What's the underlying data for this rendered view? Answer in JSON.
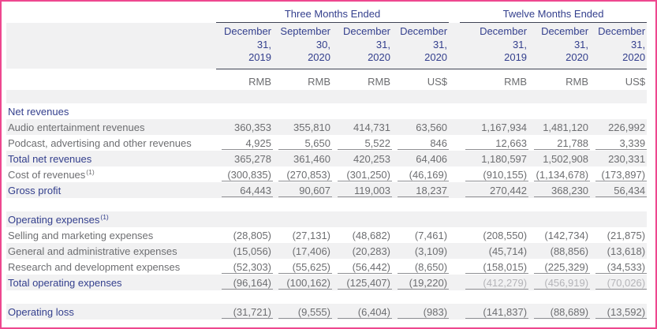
{
  "theme": {
    "frame_border": "#ee478f",
    "navy_text": "#333f8d",
    "gray_text": "#6d6e71",
    "row_shade_bg": "#f1f1f2",
    "value_rule": "#8f9094",
    "header_rule": "#3f4354",
    "faded_text": "#b4b4b8"
  },
  "header": {
    "groups": [
      {
        "label": "Three Months Ended"
      },
      {
        "label": "Twelve Months Ended"
      }
    ],
    "columns": [
      {
        "date": "December\n31,\n2019",
        "currency": "RMB"
      },
      {
        "date": "September\n30,\n2020",
        "currency": "RMB"
      },
      {
        "date": "December\n31,\n2020",
        "currency": "RMB"
      },
      {
        "date": "December\n31,\n2020",
        "currency": "US$"
      },
      {
        "date": "December\n31,\n2019",
        "currency": "RMB"
      },
      {
        "date": "December\n31,\n2020",
        "currency": "RMB"
      },
      {
        "date": "December\n31,\n2020",
        "currency": "US$"
      }
    ]
  },
  "rows": [
    {
      "type": "blank",
      "shade": true
    },
    {
      "type": "section",
      "label": "Net revenues",
      "shade": false
    },
    {
      "type": "item",
      "label": "Audio entertainment revenues",
      "shade": true,
      "values": [
        "360,353",
        "355,810",
        "414,731",
        "63,560",
        "1,167,934",
        "1,481,120",
        "226,992"
      ]
    },
    {
      "type": "item",
      "label": "Podcast, advertising and other revenues",
      "shade": false,
      "underline": true,
      "values": [
        "4,925",
        "5,650",
        "5,522",
        "846",
        "12,663",
        "21,788",
        "3,339"
      ]
    },
    {
      "type": "total",
      "label": "Total net revenues",
      "shade": true,
      "values": [
        "365,278",
        "361,460",
        "420,253",
        "64,406",
        "1,180,597",
        "1,502,908",
        "230,331"
      ]
    },
    {
      "type": "item",
      "label": "Cost of revenues",
      "sup": "(1)",
      "shade": false,
      "underline": true,
      "values": [
        "(300,835)",
        "(270,853)",
        "(301,250)",
        "(46,169)",
        "(910,155)",
        "(1,134,678)",
        "(173,897)"
      ]
    },
    {
      "type": "total",
      "label": "Gross profit",
      "shade": true,
      "underline": true,
      "values": [
        "64,443",
        "90,607",
        "119,003",
        "18,237",
        "270,442",
        "368,230",
        "56,434"
      ]
    },
    {
      "type": "blank",
      "shade": false
    },
    {
      "type": "section",
      "label": "Operating expenses",
      "sup": "(1)",
      "shade": true
    },
    {
      "type": "item",
      "label": "Selling and marketing expenses",
      "shade": false,
      "values": [
        "(28,805)",
        "(27,131)",
        "(48,682)",
        "(7,461)",
        "(208,550)",
        "(142,734)",
        "(21,875)"
      ]
    },
    {
      "type": "item",
      "label": "General and administrative expenses",
      "shade": true,
      "values": [
        "(15,056)",
        "(17,406)",
        "(20,283)",
        "(3,109)",
        "(45,714)",
        "(88,856)",
        "(13,618)"
      ]
    },
    {
      "type": "item",
      "label": "Research and development expenses",
      "shade": false,
      "underline": true,
      "values": [
        "(52,303)",
        "(55,625)",
        "(56,442)",
        "(8,650)",
        "(158,015)",
        "(225,329)",
        "(34,533)"
      ]
    },
    {
      "type": "total",
      "label": "Total operating expenses",
      "shade": true,
      "underline": true,
      "faded": [
        4,
        5,
        6
      ],
      "values": [
        "(96,164)",
        "(100,162)",
        "(125,407)",
        "(19,220)",
        "(412,279)",
        "(456,919)",
        "(70,026)"
      ]
    },
    {
      "type": "blank",
      "shade": false
    },
    {
      "type": "total",
      "label": "Operating loss",
      "shade": true,
      "underline": true,
      "values": [
        "(31,721)",
        "(9,555)",
        "(6,404)",
        "(983)",
        "(141,837)",
        "(88,689)",
        "(13,592)"
      ]
    }
  ]
}
